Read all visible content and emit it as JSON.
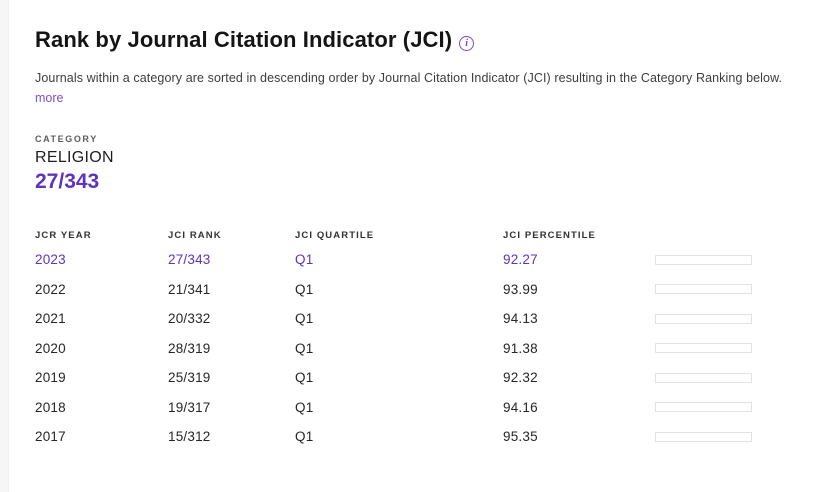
{
  "header": {
    "title": "Rank by Journal Citation Indicator (JCI)",
    "info_icon": "info-icon",
    "info_glyph": "i",
    "description": "Journals within a category are sorted in descending order by Journal Citation Indicator (JCI) resulting in the Category Ranking below.",
    "more_label": "more"
  },
  "category": {
    "label": "CATEGORY",
    "name": "RELIGION",
    "rank": "27/343"
  },
  "colors": {
    "accent": "#5e33bf",
    "bar_highlight": "#5831c0",
    "bar_default": "#dbdbdb",
    "bar_border": "#e2e2e2",
    "gutter": "#f6f6f6"
  },
  "table": {
    "columns": [
      {
        "key": "year",
        "label": "JCR YEAR"
      },
      {
        "key": "rank",
        "label": "JCI RANK"
      },
      {
        "key": "quartile",
        "label": "JCI QUARTILE"
      },
      {
        "key": "percentile",
        "label": "JCI PERCENTILE"
      }
    ],
    "rows": [
      {
        "year": "2023",
        "rank": "27/343",
        "quartile": "Q1",
        "percentile": "92.27",
        "highlight": true
      },
      {
        "year": "2022",
        "rank": "21/341",
        "quartile": "Q1",
        "percentile": "93.99",
        "highlight": false
      },
      {
        "year": "2021",
        "rank": "20/332",
        "quartile": "Q1",
        "percentile": "94.13",
        "highlight": false
      },
      {
        "year": "2020",
        "rank": "28/319",
        "quartile": "Q1",
        "percentile": "91.38",
        "highlight": false
      },
      {
        "year": "2019",
        "rank": "25/319",
        "quartile": "Q1",
        "percentile": "92.32",
        "highlight": false
      },
      {
        "year": "2018",
        "rank": "19/317",
        "quartile": "Q1",
        "percentile": "94.16",
        "highlight": false
      },
      {
        "year": "2017",
        "rank": "15/312",
        "quartile": "Q1",
        "percentile": "95.35",
        "highlight": false
      }
    ]
  }
}
